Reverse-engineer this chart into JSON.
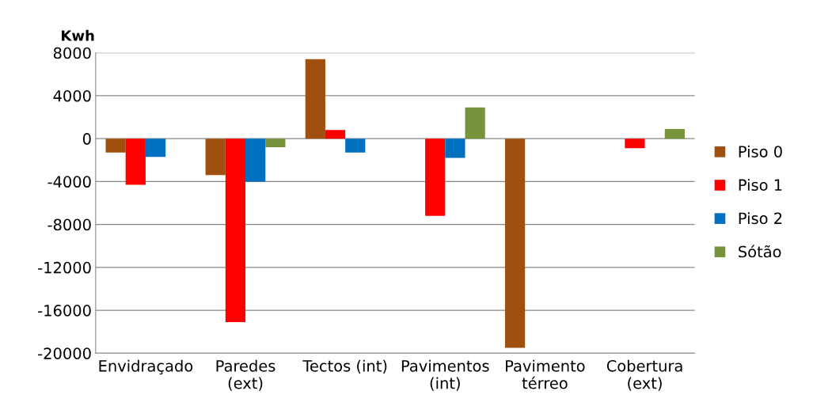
{
  "chart_data": {
    "type": "bar",
    "ylabel": "Kwh",
    "categories": [
      "Envidraçado",
      "Paredes (ext)",
      "Tectos (int)",
      "Pavimentos (int)",
      "Pavimento térreo",
      "Cobertura (ext)"
    ],
    "series": [
      {
        "name": "Piso 0",
        "color": "#a0500e",
        "values": [
          -1300,
          -3400,
          7400,
          0,
          -19500,
          0
        ]
      },
      {
        "name": "Piso 1",
        "color": "#ff0000",
        "values": [
          -4300,
          -17100,
          800,
          -7200,
          0,
          -900
        ]
      },
      {
        "name": "Piso 2",
        "color": "#0070c0",
        "values": [
          -1700,
          -4000,
          -1300,
          -1800,
          0,
          0
        ]
      },
      {
        "name": "Sótão",
        "color": "#77933c",
        "values": [
          0,
          -800,
          0,
          2900,
          0,
          900
        ]
      }
    ],
    "ylim": [
      -20000,
      8000
    ],
    "yticks": [
      -20000,
      -16000,
      -12000,
      -8000,
      -4000,
      0,
      4000,
      8000
    ],
    "grid": "y",
    "legend": "right"
  }
}
